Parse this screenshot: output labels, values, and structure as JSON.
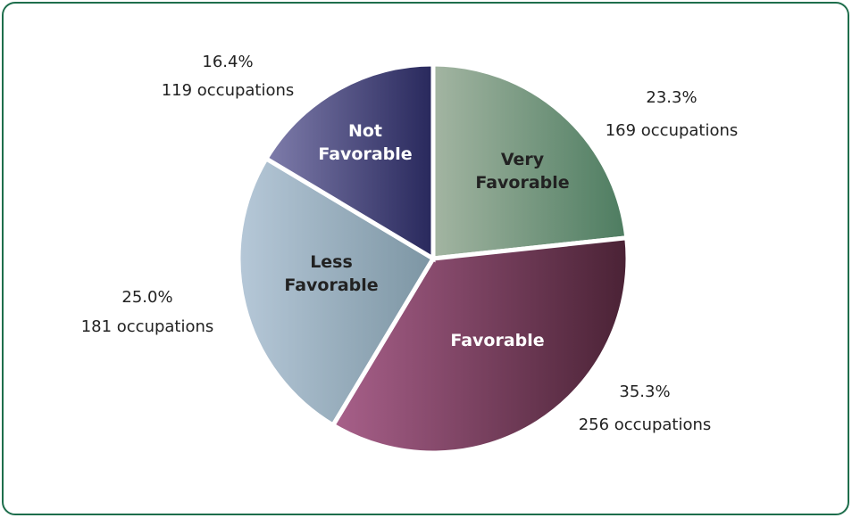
{
  "chart_data": {
    "type": "pie",
    "categories": [
      "Very Favorable",
      "Favorable",
      "Less Favorable",
      "Not Favorable"
    ],
    "values": [
      23.3,
      35.3,
      25.0,
      16.4
    ],
    "value_labels": [
      "23.3%",
      "35.3%",
      "25.0%",
      "16.4%"
    ],
    "occupation_labels": [
      "169 occupations",
      "256 occupations",
      "181 occupations",
      "119 occupations"
    ],
    "colors": [
      [
        "#a3b5a2",
        "#4d7c60"
      ],
      [
        "#a8608a",
        "#4a2235"
      ],
      [
        "#b6c8d8",
        "#7c95a3"
      ],
      [
        "#7f7dab",
        "#28285c"
      ]
    ],
    "label_colors": [
      "#222222",
      "#ffffff",
      "#222222",
      "#ffffff"
    ]
  }
}
